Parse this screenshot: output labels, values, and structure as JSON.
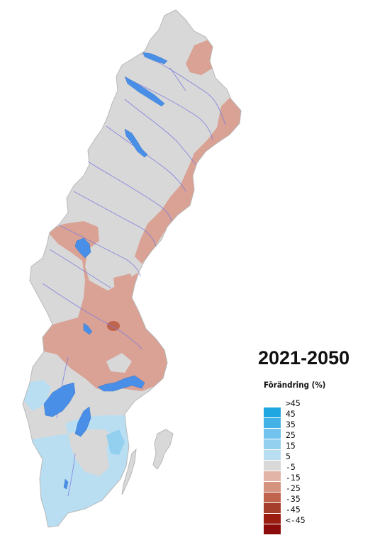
{
  "title": "2021-2050",
  "legend": {
    "title": "Förändring (%)",
    "ticks": [
      ">45",
      "45",
      "35",
      "25",
      "15",
      "5",
      "-5",
      "-15",
      "-25",
      "-35",
      "-45",
      "<-45"
    ],
    "classes": [
      {
        "color": "#1fa7e1"
      },
      {
        "color": "#43b2e6"
      },
      {
        "color": "#71c2ec"
      },
      {
        "color": "#93d0f0"
      },
      {
        "color": "#b9def2"
      },
      {
        "color": "#d8d8d8"
      },
      {
        "color": "#e2b4a8"
      },
      {
        "color": "#d4937f"
      },
      {
        "color": "#c0644e"
      },
      {
        "color": "#a63e2c"
      },
      {
        "color": "#9a1d10"
      },
      {
        "color": "#8b0a0a"
      }
    ]
  },
  "colors": {
    "land": "#d8d8d8",
    "decrease": "#d9a294",
    "decrease_strong": "#c0644e",
    "increase": "#b9def2",
    "lake": "#4a8fe7",
    "river": "#7a7ae0",
    "coast": "#b8b8b8"
  }
}
